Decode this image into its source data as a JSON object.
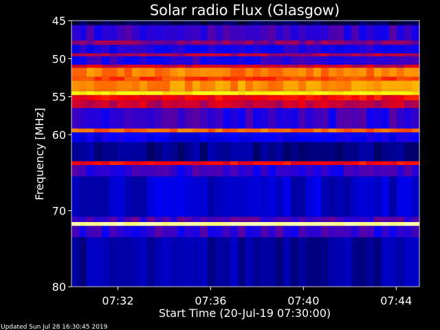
{
  "chart_data": {
    "type": "heatmap",
    "title": "Solar radio Flux (Glasgow)",
    "ylabel": "Frequency [MHz]",
    "xlabel": "Start Time (20-Jul-19 07:30:00)",
    "ylim": [
      45,
      80
    ],
    "y_ticks": [
      "45",
      "50",
      "55",
      "60",
      "70",
      "80"
    ],
    "y_tick_values": [
      45,
      50,
      55,
      60,
      70,
      80
    ],
    "x_ticks": [
      "07:32",
      "07:36",
      "07:40",
      "07:44"
    ],
    "x_tick_minutes": [
      2,
      6,
      10,
      14
    ],
    "x_range_minutes": [
      0,
      15
    ],
    "colormap": [
      "#000000",
      "#0000ff",
      "#ff0000",
      "#ffff00",
      "#ffffff"
    ],
    "bands": [
      {
        "freq_from": 45.0,
        "freq_to": 45.6,
        "intensity": 0.08
      },
      {
        "freq_from": 45.6,
        "freq_to": 47.6,
        "intensity": 0.3
      },
      {
        "freq_from": 47.6,
        "freq_to": 48.2,
        "intensity": 0.38
      },
      {
        "freq_from": 48.2,
        "freq_to": 49.3,
        "intensity": 0.26
      },
      {
        "freq_from": 49.3,
        "freq_to": 49.7,
        "intensity": 0.42
      },
      {
        "freq_from": 49.7,
        "freq_to": 50.8,
        "intensity": 0.28
      },
      {
        "freq_from": 50.8,
        "freq_to": 51.2,
        "intensity": 0.45
      },
      {
        "freq_from": 51.2,
        "freq_to": 52.4,
        "intensity": 0.62
      },
      {
        "freq_from": 52.4,
        "freq_to": 52.9,
        "intensity": 0.56
      },
      {
        "freq_from": 52.9,
        "freq_to": 54.3,
        "intensity": 0.64
      },
      {
        "freq_from": 54.3,
        "freq_to": 54.8,
        "intensity": 0.74
      },
      {
        "freq_from": 54.8,
        "freq_to": 55.5,
        "intensity": 0.5
      },
      {
        "freq_from": 55.5,
        "freq_to": 56.5,
        "intensity": 0.44
      },
      {
        "freq_from": 56.5,
        "freq_to": 59.2,
        "intensity": 0.3
      },
      {
        "freq_from": 59.2,
        "freq_to": 59.7,
        "intensity": 0.6
      },
      {
        "freq_from": 59.7,
        "freq_to": 61.0,
        "intensity": 0.24
      },
      {
        "freq_from": 61.0,
        "freq_to": 63.5,
        "intensity": 0.14
      },
      {
        "freq_from": 63.5,
        "freq_to": 64.0,
        "intensity": 0.5
      },
      {
        "freq_from": 64.0,
        "freq_to": 65.5,
        "intensity": 0.3
      },
      {
        "freq_from": 65.5,
        "freq_to": 70.8,
        "intensity": 0.2
      },
      {
        "freq_from": 70.8,
        "freq_to": 71.5,
        "intensity": 0.32
      },
      {
        "freq_from": 71.5,
        "freq_to": 72.0,
        "intensity": 0.9
      },
      {
        "freq_from": 72.0,
        "freq_to": 73.5,
        "intensity": 0.3
      },
      {
        "freq_from": 73.5,
        "freq_to": 80.0,
        "intensity": 0.16
      }
    ]
  },
  "footer": {
    "updated": "Updated Sun Jul 28 16:30:45 2019"
  }
}
